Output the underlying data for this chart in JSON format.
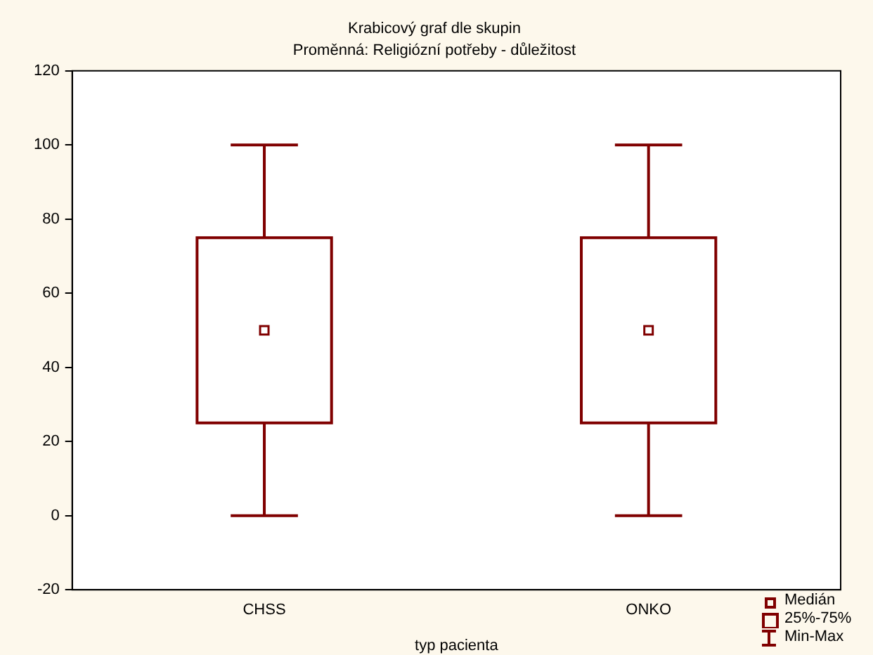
{
  "chart_data": {
    "type": "box",
    "title": "Krabicový graf dle skupin",
    "subtitle": "Proměnná: Religiózní potřeby - důležitost",
    "xlabel": "typ pacienta",
    "categories": [
      "CHSS",
      "ONKO"
    ],
    "boxes": [
      {
        "low": 0,
        "q1": 25,
        "median": 50,
        "q3": 75,
        "high": 100
      },
      {
        "low": 0,
        "q1": 25,
        "median": 50,
        "q3": 75,
        "high": 100
      }
    ],
    "color": "#800000",
    "ylim": [
      -20,
      120
    ],
    "yticks": [
      -20,
      0,
      20,
      40,
      60,
      80,
      100,
      120
    ],
    "grid": false,
    "annotations": [
      "Medián",
      "25%-75%",
      "Min-Max"
    ]
  }
}
